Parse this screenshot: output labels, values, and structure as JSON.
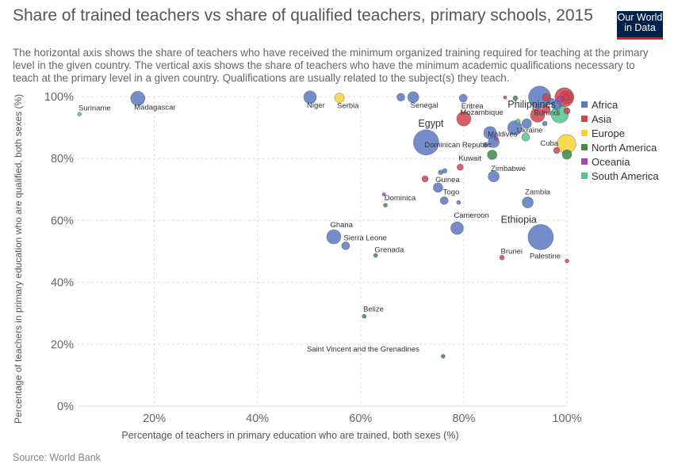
{
  "title": "Share of trained teachers vs share of qualified teachers, primary schools, 2015",
  "subtitle": "The horizontal axis shows the share of teachers who have received the minimum organized training required for teaching at the primary level in the given country. The vertical axis shows the share of teachers who have the minimum academic qualifications necessary to teach at the primary level in a given country. Qualifications are usually related to the subject(s) they teach.",
  "logo": {
    "line1": "Our World",
    "line2": "in Data"
  },
  "source": "Source: World Bank",
  "chart_data": {
    "type": "scatter",
    "title": "Share of trained teachers vs share of qualified teachers, primary schools, 2015",
    "xlabel": "Percentage of teachers in primary education who are trained, both sexes (%)",
    "ylabel": "Percentage of teachers in primary education who are qualified, both sexes (%)",
    "xlim": [
      5,
      100
    ],
    "ylim": [
      0,
      100
    ],
    "x_ticks": [
      "20%",
      "40%",
      "60%",
      "80%",
      "100%"
    ],
    "x_tick_values": [
      20,
      40,
      60,
      80,
      100
    ],
    "y_ticks": [
      "0%",
      "20%",
      "40%",
      "60%",
      "80%",
      "100%"
    ],
    "y_tick_values": [
      0,
      20,
      40,
      60,
      80,
      100
    ],
    "grid": true,
    "legend_position": "right",
    "legend": [
      {
        "name": "Africa",
        "color": "#5b79c2"
      },
      {
        "name": "Asia",
        "color": "#d2424f"
      },
      {
        "name": "Europe",
        "color": "#f7d236"
      },
      {
        "name": "North America",
        "color": "#3c8c4b"
      },
      {
        "name": "Oceania",
        "color": "#a448b5"
      },
      {
        "name": "South America",
        "color": "#53c58d"
      }
    ],
    "points": [
      {
        "label": "Madagascar",
        "x": 16.8,
        "y": 99.4,
        "region": "Africa",
        "size": 9,
        "lx": 0,
        "ly": 14,
        "anchor": "start"
      },
      {
        "label": "Suriname",
        "x": 5.5,
        "y": 94.3,
        "region": "South America",
        "size": 2.5,
        "lx": 0,
        "ly": -5,
        "anchor": "start"
      },
      {
        "label": "Niger",
        "x": 50.2,
        "y": 99.8,
        "region": "Africa",
        "size": 8,
        "lx": 0,
        "ly": 13,
        "anchor": "start"
      },
      {
        "label": "Serbia",
        "x": 55.9,
        "y": 99.6,
        "region": "Europe",
        "size": 6,
        "lx": 0,
        "ly": 13,
        "anchor": "start"
      },
      {
        "label": "Senegal",
        "x": 70.2,
        "y": 99.8,
        "region": "Africa",
        "size": 7,
        "lx": 0,
        "ly": 13,
        "anchor": "start"
      },
      {
        "label": "",
        "x": 67.8,
        "y": 99.8,
        "region": "Africa",
        "size": 5,
        "lx": 0,
        "ly": 0,
        "anchor": "start"
      },
      {
        "label": "Eritrea",
        "x": 79.9,
        "y": 99.5,
        "region": "Africa",
        "size": 5,
        "lx": 0,
        "ly": 13,
        "anchor": "start"
      },
      {
        "label": "Philippines",
        "x": 94.7,
        "y": 99.8,
        "region": "Africa",
        "size": 14,
        "lx": -10,
        "ly": 13,
        "anchor": "middle",
        "big": true
      },
      {
        "label": "",
        "x": 88.0,
        "y": 99.7,
        "region": "Asia",
        "size": 2,
        "lx": 0,
        "ly": 0,
        "anchor": "start"
      },
      {
        "label": "",
        "x": 90.0,
        "y": 99.5,
        "region": "North America",
        "size": 3,
        "lx": 0,
        "ly": 0,
        "anchor": "start"
      },
      {
        "label": "",
        "x": 96.0,
        "y": 99.7,
        "region": "Asia",
        "size": 5,
        "lx": 0,
        "ly": 0,
        "anchor": "start"
      },
      {
        "label": "",
        "x": 97.0,
        "y": 98.5,
        "region": "Africa",
        "size": 4,
        "lx": 0,
        "ly": 0,
        "anchor": "start"
      },
      {
        "label": "",
        "x": 99.5,
        "y": 99.8,
        "region": "Asia",
        "size": 12,
        "lx": 0,
        "ly": 0,
        "anchor": "start"
      },
      {
        "label": "",
        "x": 99.9,
        "y": 99.8,
        "region": "Asia",
        "size": 8,
        "lx": 0,
        "ly": 0,
        "anchor": "start"
      },
      {
        "label": "",
        "x": 99.9,
        "y": 99.8,
        "region": "Asia",
        "size": 4,
        "lx": 0,
        "ly": 0,
        "anchor": "start"
      },
      {
        "label": "",
        "x": 98.6,
        "y": 99.2,
        "region": "Oceania",
        "size": 4,
        "lx": 0,
        "ly": 0,
        "anchor": "start"
      },
      {
        "label": "",
        "x": 100.0,
        "y": 95.4,
        "region": "Asia",
        "size": 4,
        "lx": 0,
        "ly": 0,
        "anchor": "start"
      },
      {
        "label": "",
        "x": 98.0,
        "y": 97.3,
        "region": "Africa",
        "size": 6,
        "lx": 0,
        "ly": 0,
        "anchor": "start"
      },
      {
        "label": "",
        "x": 96.0,
        "y": 95.8,
        "region": "Asia",
        "size": 5,
        "lx": 0,
        "ly": 0,
        "anchor": "start"
      },
      {
        "label": "Burundi",
        "x": 94.3,
        "y": 94.0,
        "region": "Asia",
        "size": 9,
        "lx": 0,
        "ly": 0,
        "anchor": "start"
      },
      {
        "label": "",
        "x": 98.6,
        "y": 94.3,
        "region": "South America",
        "size": 11,
        "lx": 0,
        "ly": 0,
        "anchor": "start"
      },
      {
        "label": "Mozambique",
        "x": 80.0,
        "y": 92.8,
        "region": "Asia",
        "size": 9,
        "lx": 0,
        "ly": -5,
        "anchor": "start"
      },
      {
        "label": "Egypt",
        "x": 72.7,
        "y": 85.2,
        "region": "Africa",
        "size": 16,
        "lx": -2,
        "ly": -20,
        "anchor": "start",
        "big": true
      },
      {
        "label": "Dominican Republic",
        "x": 72.7,
        "y": 85.2,
        "region": "Africa",
        "size": 0,
        "lx": -2,
        "ly": 6,
        "anchor": "start"
      },
      {
        "label": "Ukraine",
        "x": 89.9,
        "y": 89.9,
        "region": "Africa",
        "size": 9,
        "lx": 7,
        "ly": 6,
        "anchor": "start"
      },
      {
        "label": "",
        "x": 92.2,
        "y": 91.3,
        "region": "Africa",
        "size": 6,
        "lx": 0,
        "ly": 0,
        "anchor": "start"
      },
      {
        "label": "",
        "x": 90.5,
        "y": 92.0,
        "region": "South America",
        "size": 3,
        "lx": 0,
        "ly": 0,
        "anchor": "start"
      },
      {
        "label": "",
        "x": 95.7,
        "y": 91.3,
        "region": "Africa",
        "size": 3,
        "lx": 0,
        "ly": 0,
        "anchor": "start"
      },
      {
        "label": "Maldives",
        "x": 85.1,
        "y": 88.3,
        "region": "Africa",
        "size": 8,
        "lx": 1,
        "ly": 5,
        "anchor": "start"
      },
      {
        "label": "",
        "x": 85.8,
        "y": 85.3,
        "region": "Africa",
        "size": 7,
        "lx": 0,
        "ly": 0,
        "anchor": "start"
      },
      {
        "label": "",
        "x": 86.3,
        "y": 86.4,
        "region": "Oceania",
        "size": 2.5,
        "lx": 0,
        "ly": 0,
        "anchor": "start"
      },
      {
        "label": "",
        "x": 84.2,
        "y": 84.4,
        "region": "Africa",
        "size": 3,
        "lx": 0,
        "ly": 0,
        "anchor": "start"
      },
      {
        "label": "",
        "x": 92.0,
        "y": 86.9,
        "region": "South America",
        "size": 5,
        "lx": 0,
        "ly": 0,
        "anchor": "start"
      },
      {
        "label": "Cuba",
        "x": 99.9,
        "y": 84.7,
        "region": "Europe",
        "size": 12,
        "lx": -27,
        "ly": 2,
        "anchor": "start"
      },
      {
        "label": "",
        "x": 98.0,
        "y": 82.6,
        "region": "Asia",
        "size": 4,
        "lx": 0,
        "ly": 0,
        "anchor": "start"
      },
      {
        "label": "",
        "x": 100.0,
        "y": 81.3,
        "region": "North America",
        "size": 6,
        "lx": 0,
        "ly": 0,
        "anchor": "start"
      },
      {
        "label": "",
        "x": 85.5,
        "y": 81.2,
        "region": "North America",
        "size": 6,
        "lx": 0,
        "ly": 0,
        "anchor": "start"
      },
      {
        "label": "Kuwait",
        "x": 79.3,
        "y": 77.2,
        "region": "Asia",
        "size": 4,
        "lx": 0,
        "ly": -8,
        "anchor": "start"
      },
      {
        "label": "Zimbabwe",
        "x": 85.8,
        "y": 74.2,
        "region": "Africa",
        "size": 7,
        "lx": 0,
        "ly": -7,
        "anchor": "start"
      },
      {
        "label": "",
        "x": 72.5,
        "y": 73.4,
        "region": "Asia",
        "size": 4,
        "lx": 0,
        "ly": 0,
        "anchor": "start"
      },
      {
        "label": "Guinea",
        "x": 75.5,
        "y": 75.5,
        "region": "Africa",
        "size": 3,
        "lx": -5,
        "ly": 12,
        "anchor": "start"
      },
      {
        "label": "",
        "x": 76.3,
        "y": 76.0,
        "region": "Africa",
        "size": 3,
        "lx": 0,
        "ly": 0,
        "anchor": "start"
      },
      {
        "label": "",
        "x": 75.0,
        "y": 70.6,
        "region": "Africa",
        "size": 6,
        "lx": 0,
        "ly": 0,
        "anchor": "start"
      },
      {
        "label": "Togo",
        "x": 76.2,
        "y": 66.4,
        "region": "Africa",
        "size": 5,
        "lx": 1,
        "ly": -8,
        "anchor": "start"
      },
      {
        "label": "",
        "x": 79.0,
        "y": 65.8,
        "region": "Africa",
        "size": 2.5,
        "lx": 0,
        "ly": 0,
        "anchor": "start"
      },
      {
        "label": "Dominica",
        "x": 64.8,
        "y": 64.9,
        "region": "North America",
        "size": 2.5,
        "lx": 0,
        "ly": -6,
        "anchor": "start"
      },
      {
        "label": "",
        "x": 64.5,
        "y": 68.4,
        "region": "Oceania",
        "size": 2,
        "lx": 0,
        "ly": 0,
        "anchor": "start"
      },
      {
        "label": "Zambia",
        "x": 92.4,
        "y": 65.8,
        "region": "Africa",
        "size": 7,
        "lx": 0,
        "ly": -10,
        "anchor": "start"
      },
      {
        "label": "Cameroon",
        "x": 78.7,
        "y": 57.5,
        "region": "Africa",
        "size": 8,
        "lx": 0,
        "ly": -13,
        "anchor": "start"
      },
      {
        "label": "Ghana",
        "x": 54.8,
        "y": 54.7,
        "region": "Africa",
        "size": 9,
        "lx": 0,
        "ly": -12,
        "anchor": "start"
      },
      {
        "label": "Sierra Leone",
        "x": 57.1,
        "y": 51.8,
        "region": "Africa",
        "size": 5,
        "lx": 0,
        "ly": -7,
        "anchor": "start"
      },
      {
        "label": "Grenada",
        "x": 62.9,
        "y": 48.7,
        "region": "North America",
        "size": 2.5,
        "lx": 0,
        "ly": -4,
        "anchor": "start"
      },
      {
        "label": "Ethiopia",
        "x": 94.9,
        "y": 54.6,
        "region": "Africa",
        "size": 16,
        "lx": -5,
        "ly": -18,
        "anchor": "end",
        "big": true
      },
      {
        "label": "Brunei",
        "x": 87.4,
        "y": 48.0,
        "region": "Asia",
        "size": 3,
        "lx": 0,
        "ly": -5,
        "anchor": "start"
      },
      {
        "label": "Palestine",
        "x": 100.0,
        "y": 46.9,
        "region": "Asia",
        "size": 2.5,
        "lx": -8,
        "ly": -3,
        "anchor": "end"
      },
      {
        "label": "Belize",
        "x": 60.7,
        "y": 29.0,
        "region": "North America",
        "size": 2.5,
        "lx": 0,
        "ly": -6,
        "anchor": "start"
      },
      {
        "label": "Saint Vincent and the Grenadines",
        "x": 76.0,
        "y": 16.1,
        "region": "North America",
        "size": 2.5,
        "lx": -30,
        "ly": -6,
        "anchor": "end"
      }
    ]
  }
}
